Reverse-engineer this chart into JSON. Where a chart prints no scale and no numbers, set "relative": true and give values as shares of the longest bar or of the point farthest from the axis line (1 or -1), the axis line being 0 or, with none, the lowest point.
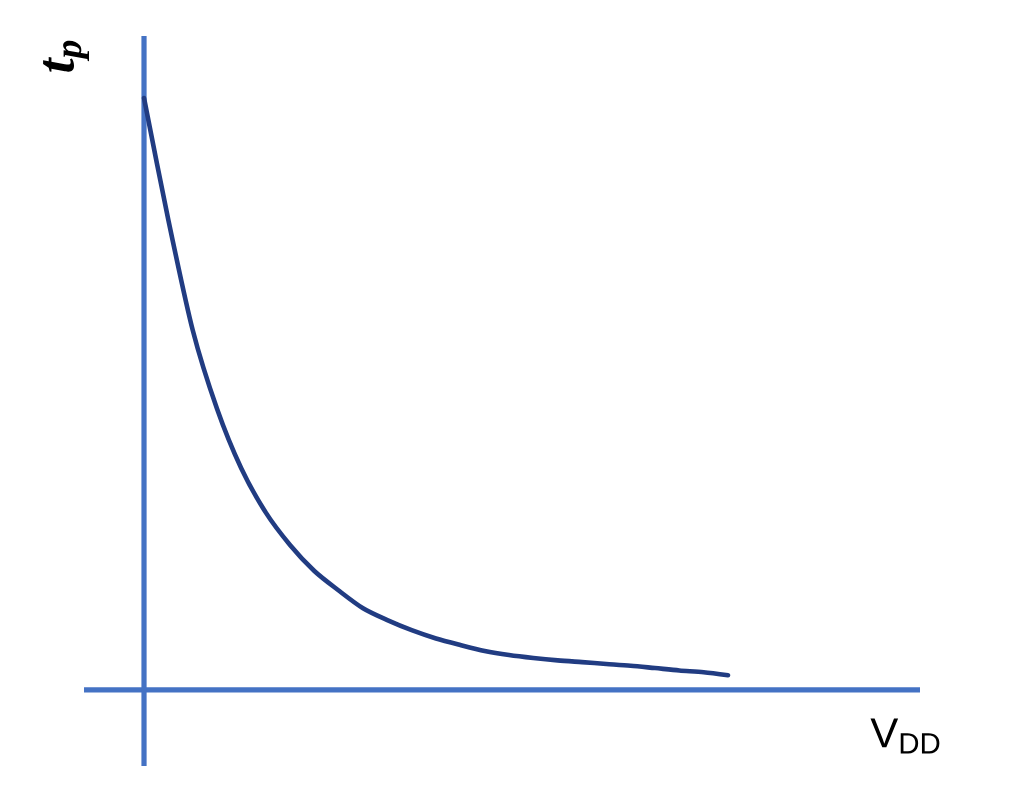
{
  "chart_data": {
    "type": "line",
    "relative": true,
    "ylabel": "t$_{p}$",
    "xlabel": "V$_{DD}$",
    "color": "#213c82",
    "categories": [
      null,
      null,
      null,
      null,
      null,
      null,
      null,
      null,
      null,
      null,
      null,
      null,
      null,
      null,
      null,
      null,
      null,
      null,
      null,
      null,
      null,
      null,
      null,
      null,
      null
    ],
    "values": [
      1.0,
      0.794,
      0.608,
      0.475,
      0.374,
      0.3,
      0.245,
      0.201,
      0.168,
      0.138,
      0.118,
      0.101,
      0.087,
      0.076,
      0.066,
      0.059,
      0.054,
      0.05,
      0.047,
      0.044,
      0.041,
      0.037,
      0.033,
      0.03,
      0.025
    ]
  }
}
